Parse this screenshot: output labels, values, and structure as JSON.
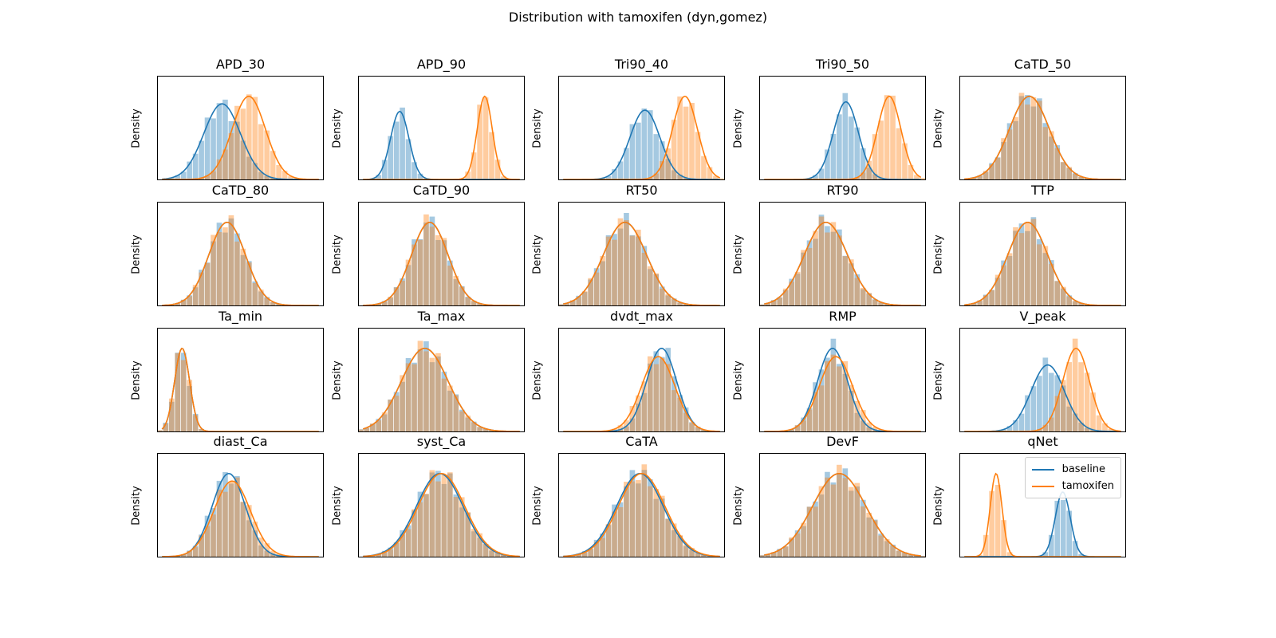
{
  "title": "Distribution with tamoxifen (dyn,gomez)",
  "colors": {
    "baseline": "#1f77b4",
    "tamoxifen": "#ff7f0e"
  },
  "chart_data": {
    "type": "histogram+kde",
    "grid": false,
    "legend": {
      "placement": "top-right",
      "panel": "qNet",
      "entries": [
        "baseline",
        "tamoxifen"
      ]
    },
    "panels": [
      {
        "name": "APD_30",
        "ylabel": "Density",
        "baseline": {
          "mean": 0.39,
          "sd": 0.11
        },
        "tamoxifen": {
          "mean": 0.55,
          "sd": 0.1
        }
      },
      {
        "name": "APD_90",
        "ylabel": "Density",
        "baseline": {
          "mean": 0.25,
          "sd": 0.055
        },
        "tamoxifen": {
          "mean": 0.76,
          "sd": 0.045
        }
      },
      {
        "name": "Tri90_40",
        "ylabel": "Density",
        "baseline": {
          "mean": 0.52,
          "sd": 0.09
        },
        "tamoxifen": {
          "mean": 0.76,
          "sd": 0.075
        }
      },
      {
        "name": "Tri90_50",
        "ylabel": "Density",
        "baseline": {
          "mean": 0.52,
          "sd": 0.075
        },
        "tamoxifen": {
          "mean": 0.78,
          "sd": 0.07
        }
      },
      {
        "name": "CaTD_50",
        "ylabel": "Density",
        "baseline": {
          "mean": 0.42,
          "sd": 0.12
        },
        "tamoxifen": {
          "mean": 0.42,
          "sd": 0.12
        }
      },
      {
        "name": "CaTD_80",
        "ylabel": "Density",
        "baseline": {
          "mean": 0.42,
          "sd": 0.11
        },
        "tamoxifen": {
          "mean": 0.42,
          "sd": 0.11
        }
      },
      {
        "name": "CaTD_90",
        "ylabel": "Density",
        "baseline": {
          "mean": 0.43,
          "sd": 0.11
        },
        "tamoxifen": {
          "mean": 0.43,
          "sd": 0.11
        }
      },
      {
        "name": "RT50",
        "ylabel": "Density",
        "baseline": {
          "mean": 0.4,
          "sd": 0.13
        },
        "tamoxifen": {
          "mean": 0.4,
          "sd": 0.13
        }
      },
      {
        "name": "RT90",
        "ylabel": "Density",
        "baseline": {
          "mean": 0.4,
          "sd": 0.13
        },
        "tamoxifen": {
          "mean": 0.4,
          "sd": 0.13
        }
      },
      {
        "name": "TTP",
        "ylabel": "Density",
        "baseline": {
          "mean": 0.41,
          "sd": 0.12
        },
        "tamoxifen": {
          "mean": 0.41,
          "sd": 0.12
        }
      },
      {
        "name": "Ta_min",
        "ylabel": "Density",
        "baseline": {
          "mean": 0.15,
          "sd": 0.045
        },
        "tamoxifen": {
          "mean": 0.15,
          "sd": 0.045
        }
      },
      {
        "name": "Ta_max",
        "ylabel": "Density",
        "baseline": {
          "mean": 0.4,
          "sd": 0.14
        },
        "tamoxifen": {
          "mean": 0.4,
          "sd": 0.14
        }
      },
      {
        "name": "dvdt_max",
        "ylabel": "Density",
        "baseline": {
          "mean": 0.62,
          "sd": 0.09
        },
        "tamoxifen": {
          "mean": 0.6,
          "sd": 0.1
        }
      },
      {
        "name": "RMP",
        "ylabel": "Density",
        "baseline": {
          "mean": 0.44,
          "sd": 0.09
        },
        "tamoxifen": {
          "mean": 0.46,
          "sd": 0.1
        }
      },
      {
        "name": "V_peak",
        "ylabel": "Density",
        "baseline": {
          "mean": 0.53,
          "sd": 0.1
        },
        "tamoxifen": {
          "mean": 0.7,
          "sd": 0.08
        }
      },
      {
        "name": "diast_Ca",
        "ylabel": "Density",
        "baseline": {
          "mean": 0.43,
          "sd": 0.1
        },
        "tamoxifen": {
          "mean": 0.45,
          "sd": 0.11
        }
      },
      {
        "name": "syst_Ca",
        "ylabel": "Density",
        "baseline": {
          "mean": 0.49,
          "sd": 0.14
        },
        "tamoxifen": {
          "mean": 0.5,
          "sd": 0.14
        }
      },
      {
        "name": "CaTA",
        "ylabel": "Density",
        "baseline": {
          "mean": 0.49,
          "sd": 0.14
        },
        "tamoxifen": {
          "mean": 0.5,
          "sd": 0.14
        }
      },
      {
        "name": "DevF",
        "ylabel": "Density",
        "baseline": {
          "mean": 0.48,
          "sd": 0.16
        },
        "tamoxifen": {
          "mean": 0.48,
          "sd": 0.16
        }
      },
      {
        "name": "qNet",
        "ylabel": "Density",
        "baseline": {
          "mean": 0.62,
          "sd": 0.045
        },
        "tamoxifen": {
          "mean": 0.22,
          "sd": 0.035
        }
      }
    ]
  }
}
